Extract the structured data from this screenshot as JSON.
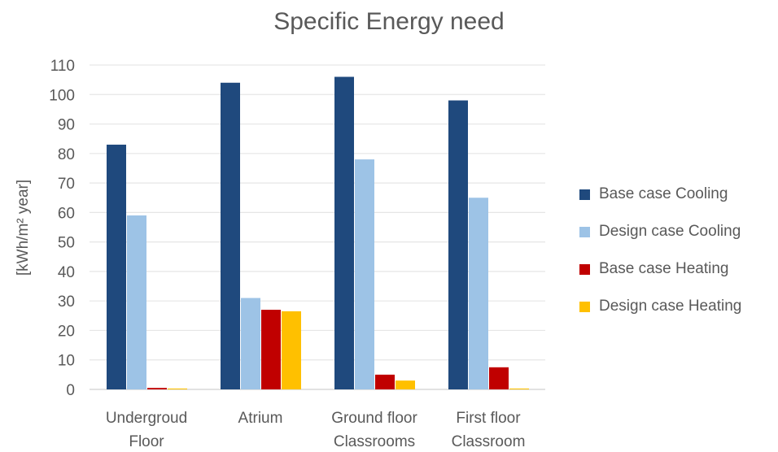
{
  "chart_data": {
    "type": "bar",
    "title": "Specific Energy need",
    "ylabel": "[kWh/m² year]",
    "ylim": [
      0,
      110
    ],
    "yticks": [
      0,
      10,
      20,
      30,
      40,
      50,
      60,
      70,
      80,
      90,
      100,
      110
    ],
    "grid": true,
    "legend_position": "right",
    "categories": [
      [
        "Undergroud",
        "Floor"
      ],
      [
        "Atrium"
      ],
      [
        "Ground floor",
        "Classrooms"
      ],
      [
        "First floor",
        "Classroom"
      ]
    ],
    "series": [
      {
        "name": "Base case Cooling",
        "color": "#1f497d",
        "values": [
          83,
          104,
          106,
          98
        ]
      },
      {
        "name": "Design case Cooling",
        "color": "#9dc3e6",
        "values": [
          59,
          31,
          78,
          65
        ]
      },
      {
        "name": "Base case Heating",
        "color": "#c00000",
        "values": [
          0.5,
          27,
          5,
          7.5
        ]
      },
      {
        "name": "Design case Heating",
        "color": "#ffc000",
        "values": [
          0.3,
          26.5,
          3,
          0.3
        ]
      }
    ]
  }
}
